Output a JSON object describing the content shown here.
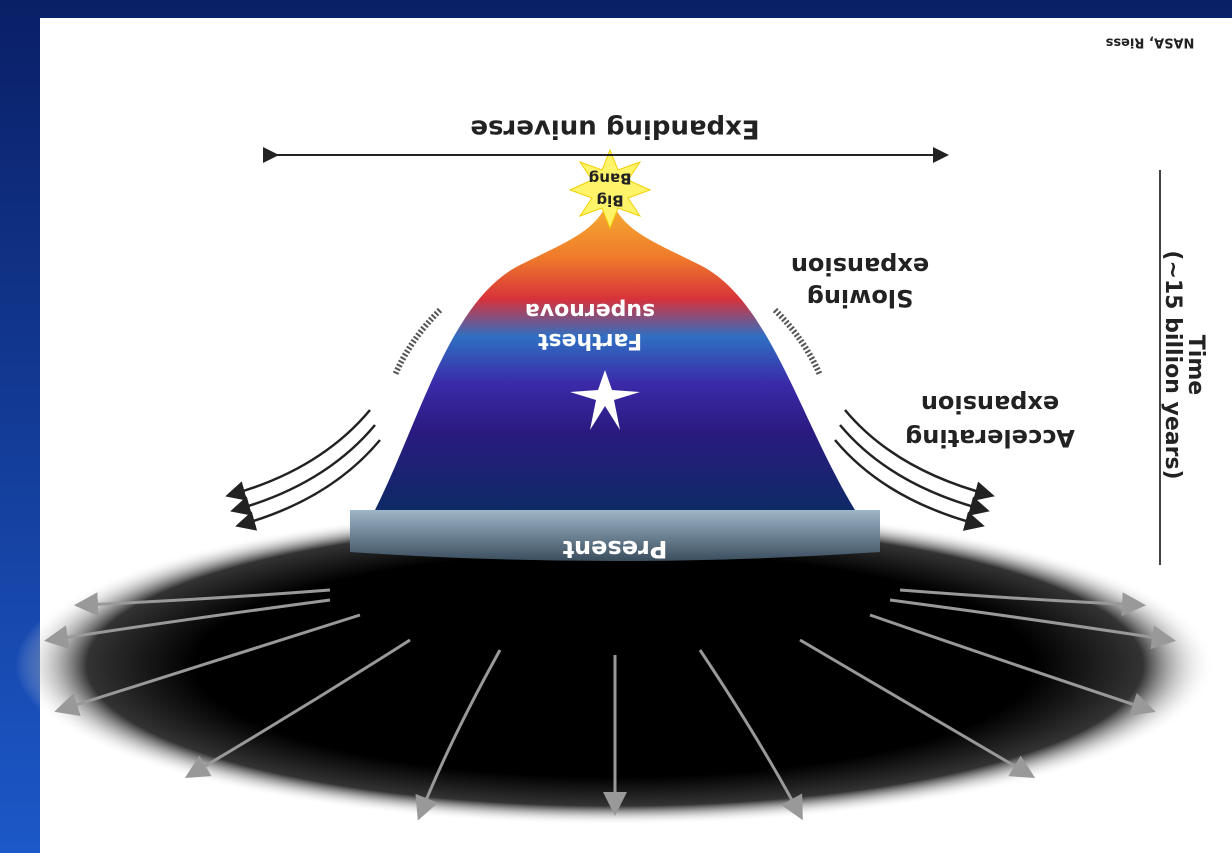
{
  "figure": {
    "expanding_universe": "Expanding universe",
    "big_bang": [
      "Big",
      "Bang"
    ],
    "farthest_supernova": [
      "Farthest",
      "supernova"
    ],
    "slowing_expansion": [
      "Slowing",
      "expansion"
    ],
    "accelerating_expansion": [
      "Accelerating",
      "expansion"
    ],
    "present": "Present",
    "time_axis": [
      "Time",
      "(~15 billion years)"
    ],
    "credit": "NASA, Riess"
  }
}
